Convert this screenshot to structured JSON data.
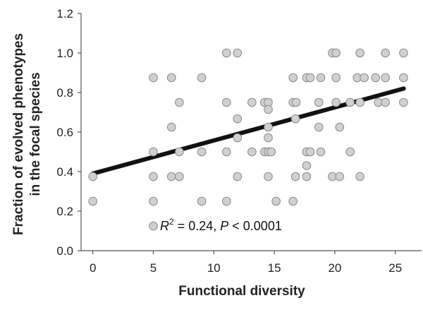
{
  "chart_data": {
    "type": "scatter",
    "title": "",
    "xlabel": "Functional diversity",
    "ylabel": [
      "Fraction of evolved phenotypes",
      "in the focal species"
    ],
    "xlim": [
      -1,
      27
    ],
    "ylim": [
      0,
      1.2
    ],
    "xticks": [
      "0",
      "5",
      "10",
      "15",
      "20",
      "25"
    ],
    "yticks": [
      "0.0",
      "0.2",
      "0.4",
      "0.6",
      "0.8",
      "1.0",
      "1.2"
    ],
    "grid": false,
    "annotation": {
      "r_label": "R",
      "r_sup": "2",
      "text": " = 0.24, ",
      "p_label": "P",
      "p_text": " < 0.0001"
    },
    "fit_line": {
      "x": [
        0,
        25.7
      ],
      "y": [
        0.39,
        0.82
      ]
    },
    "point_color": "#d0d0d0",
    "points": [
      [
        0,
        0.375
      ],
      [
        0,
        0.25
      ],
      [
        5,
        0.875
      ],
      [
        5,
        0.5
      ],
      [
        5,
        0.375
      ],
      [
        5,
        0.25
      ],
      [
        5,
        0.125
      ],
      [
        6.5,
        0.875
      ],
      [
        6.5,
        0.625
      ],
      [
        6.5,
        0.375
      ],
      [
        7.15,
        0.75
      ],
      [
        7.15,
        0.5
      ],
      [
        7.15,
        0.375
      ],
      [
        9,
        0.875
      ],
      [
        9,
        0.5
      ],
      [
        9,
        0.25
      ],
      [
        11.05,
        1.0
      ],
      [
        11.05,
        0.75
      ],
      [
        11.05,
        0.5
      ],
      [
        11.05,
        0.25
      ],
      [
        11.95,
        1.0
      ],
      [
        11.95,
        0.667
      ],
      [
        11.95,
        0.571
      ],
      [
        11.95,
        0.375
      ],
      [
        13.15,
        0.75
      ],
      [
        13.15,
        0.5
      ],
      [
        14.2,
        0.75
      ],
      [
        14.5,
        0.75
      ],
      [
        14.5,
        0.714
      ],
      [
        14.5,
        0.625
      ],
      [
        14.5,
        0.571
      ],
      [
        14.2,
        0.5
      ],
      [
        14.5,
        0.5
      ],
      [
        14.75,
        0.5
      ],
      [
        14.5,
        0.375
      ],
      [
        15.15,
        0.25
      ],
      [
        16.55,
        0.875
      ],
      [
        16.55,
        0.75
      ],
      [
        16.8,
        0.75
      ],
      [
        16.75,
        0.667
      ],
      [
        16.75,
        0.375
      ],
      [
        16.55,
        0.25
      ],
      [
        17.67,
        0.875
      ],
      [
        17.97,
        0.875
      ],
      [
        18.84,
        0.875
      ],
      [
        17.67,
        0.5
      ],
      [
        17.97,
        0.5
      ],
      [
        18.84,
        0.5
      ],
      [
        17.67,
        0.43
      ],
      [
        17.67,
        0.375
      ],
      [
        18.68,
        0.75
      ],
      [
        18.68,
        0.625
      ],
      [
        19.8,
        1.0
      ],
      [
        20.1,
        1.0
      ],
      [
        20.1,
        0.875
      ],
      [
        20.1,
        0.75
      ],
      [
        19.8,
        0.375
      ],
      [
        20.4,
        0.375
      ],
      [
        20.4,
        0.625
      ],
      [
        21.27,
        0.75
      ],
      [
        21.27,
        0.5
      ],
      [
        22.08,
        1.0
      ],
      [
        22.08,
        0.75
      ],
      [
        22.08,
        0.375
      ],
      [
        21.85,
        0.875
      ],
      [
        22.43,
        0.875
      ],
      [
        23.37,
        0.875
      ],
      [
        23.6,
        0.75
      ],
      [
        24.18,
        1.0
      ],
      [
        24.18,
        0.875
      ],
      [
        24.18,
        0.75
      ],
      [
        25.68,
        1.0
      ],
      [
        25.68,
        0.875
      ],
      [
        25.68,
        0.75
      ]
    ]
  }
}
